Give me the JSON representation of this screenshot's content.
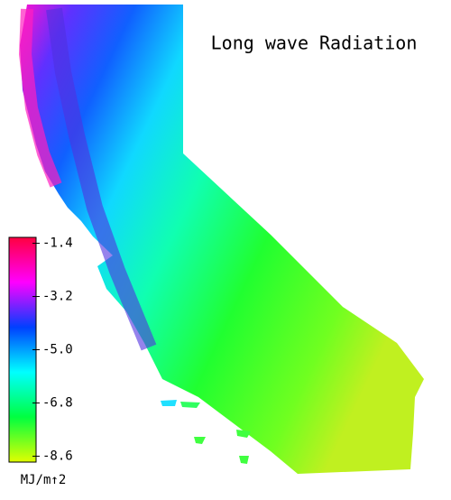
{
  "title": "Long wave Radiation",
  "colorbar": {
    "range": [
      -8.8,
      -1.2
    ],
    "ticks": [
      -1.4,
      -3.2,
      {
        "value": -5,
        "label": "-5.0"
      },
      -6.8,
      -8.6
    ],
    "colors": [
      "#e0ff00",
      "#00ff40",
      "#00ffff",
      "#0040ff",
      "#ff00ff",
      "#ff0040"
    ],
    "unit": "MJ/m↑2"
  }
}
